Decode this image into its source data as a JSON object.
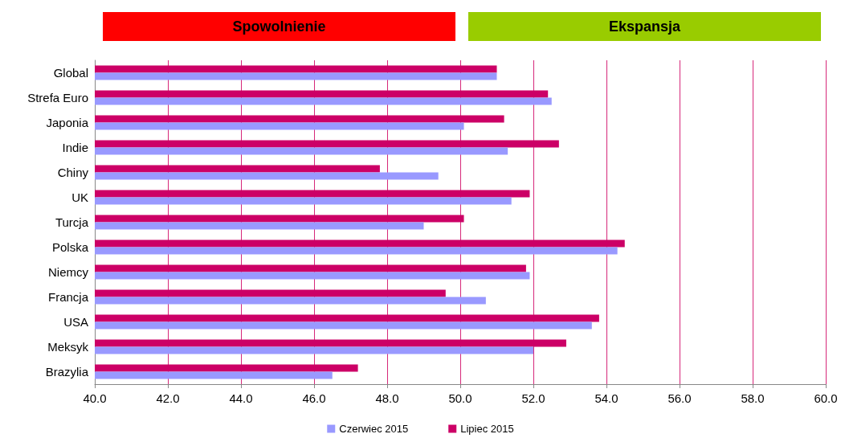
{
  "chart_data": {
    "type": "bar",
    "orientation": "horizontal",
    "categories": [
      "Global",
      "Strefa Euro",
      "Japonia",
      "Indie",
      "Chiny",
      "UK",
      "Turcja",
      "Polska",
      "Niemcy",
      "Francja",
      "USA",
      "Meksyk",
      "Brazylia"
    ],
    "series": [
      {
        "name": "Czerwiec 2015",
        "color": "#9999ff",
        "values": [
          51.0,
          52.5,
          50.1,
          51.3,
          49.4,
          51.4,
          49.0,
          54.3,
          51.9,
          50.7,
          53.6,
          52.0,
          46.5
        ]
      },
      {
        "name": "Lipiec 2015",
        "color": "#cc0066",
        "values": [
          51.0,
          52.4,
          51.2,
          52.7,
          47.8,
          51.9,
          50.1,
          54.5,
          51.8,
          49.6,
          53.8,
          52.9,
          47.2
        ]
      }
    ],
    "xlim": [
      40,
      60
    ],
    "xticks": [
      {
        "value": 40,
        "label": "40.0"
      },
      {
        "value": 42,
        "label": "42.0"
      },
      {
        "value": 44,
        "label": "44.0"
      },
      {
        "value": 46,
        "label": "46.0"
      },
      {
        "value": 48,
        "label": "48.0"
      },
      {
        "value": 50,
        "label": "50.0"
      },
      {
        "value": 52,
        "label": "52.0"
      },
      {
        "value": 54,
        "label": "54.0"
      },
      {
        "value": 56,
        "label": "56.0"
      },
      {
        "value": 58,
        "label": "58.0"
      },
      {
        "value": 60,
        "label": "60.0"
      }
    ],
    "annotations": [
      "Spowolnienie",
      "Ekspansja"
    ],
    "grid": "x",
    "legend": "bottom"
  }
}
